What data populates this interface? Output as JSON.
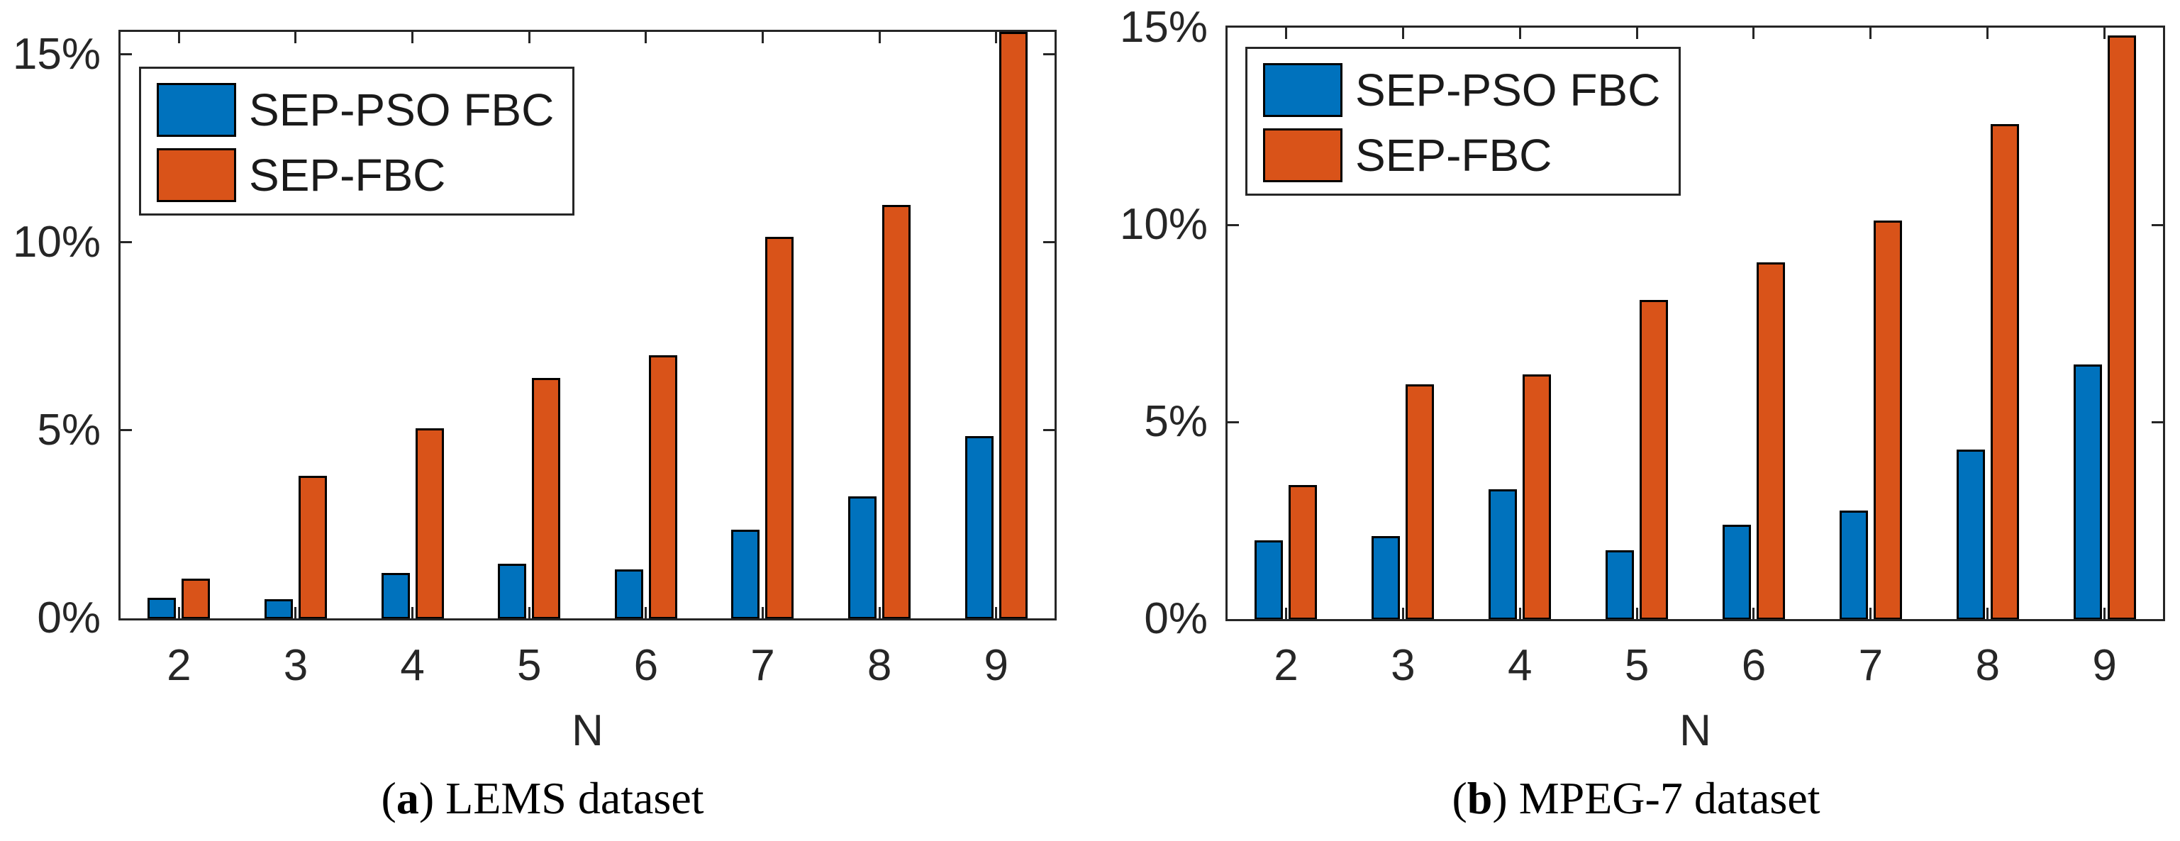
{
  "figure": {
    "colors": {
      "series_blue": "#0072BD",
      "series_orange": "#D95319",
      "axis": "#262626",
      "tick_text": "#262626",
      "caption_text": "#000000"
    }
  },
  "charts": [
    {
      "caption": {
        "open": "(",
        "letter": "a",
        "close": ")",
        "text": " LEMS dataset"
      },
      "xlabel": "N",
      "legend": [
        {
          "label": "SEP-PSO FBC"
        },
        {
          "label": "SEP-FBC"
        }
      ],
      "yticks": [
        {
          "value": 0,
          "label": "0%"
        },
        {
          "value": 5,
          "label": "5%"
        },
        {
          "value": 10,
          "label": "10%"
        },
        {
          "value": 15,
          "label": "15%"
        }
      ]
    },
    {
      "caption": {
        "open": "(",
        "letter": "b",
        "close": ")",
        "text": " MPEG-7 dataset"
      },
      "xlabel": "N",
      "legend": [
        {
          "label": "SEP-PSO FBC"
        },
        {
          "label": "SEP-FBC"
        }
      ],
      "yticks": [
        {
          "value": 0,
          "label": "0%"
        },
        {
          "value": 5,
          "label": "5%"
        },
        {
          "value": 10,
          "label": "10%"
        },
        {
          "value": 15,
          "label": "15%"
        }
      ]
    }
  ],
  "chart_data": [
    {
      "type": "bar",
      "title": "(a) LEMS dataset",
      "categories": [
        2,
        3,
        4,
        5,
        6,
        7,
        8,
        9
      ],
      "series": [
        {
          "name": "SEP-PSO FBC",
          "color": "#0072BD",
          "values": [
            0.55,
            0.5,
            1.2,
            1.45,
            1.3,
            2.35,
            3.25,
            4.85
          ]
        },
        {
          "name": "SEP-FBC",
          "color": "#D95319",
          "values": [
            1.05,
            3.8,
            5.05,
            6.4,
            7.0,
            10.15,
            11.0,
            15.6
          ]
        }
      ],
      "xlabel": "N",
      "ylabel": "",
      "ylim": [
        0,
        15.6
      ],
      "ytick_format": "percent",
      "legend_position": "top-left",
      "grid": false
    },
    {
      "type": "bar",
      "title": "(b) MPEG-7 dataset",
      "categories": [
        2,
        3,
        4,
        5,
        6,
        7,
        8,
        9
      ],
      "series": [
        {
          "name": "SEP-PSO FBC",
          "color": "#0072BD",
          "values": [
            2.0,
            2.1,
            3.3,
            1.75,
            2.4,
            2.75,
            4.3,
            6.45
          ]
        },
        {
          "name": "SEP-FBC",
          "color": "#D95319",
          "values": [
            3.4,
            5.95,
            6.2,
            8.1,
            9.05,
            10.1,
            12.55,
            14.8
          ]
        }
      ],
      "xlabel": "N",
      "ylabel": "",
      "ylim": [
        0,
        15
      ],
      "ytick_format": "percent",
      "legend_position": "top-left",
      "grid": false
    }
  ]
}
